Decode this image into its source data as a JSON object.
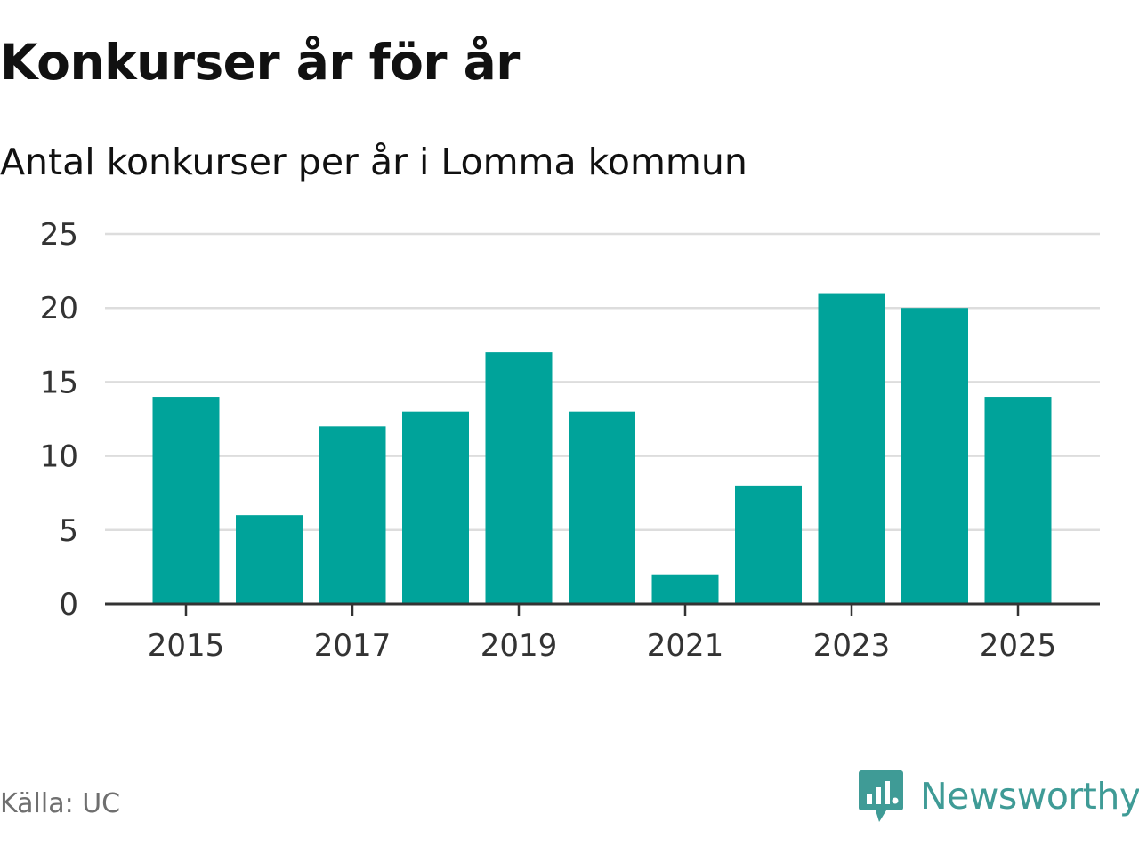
{
  "chart_data": {
    "type": "bar",
    "title": "Konkurser år för år",
    "subtitle": "Antal konkurser per år i Lomma kommun",
    "categories": [
      "2015",
      "2016",
      "2017",
      "2018",
      "2019",
      "2020",
      "2021",
      "2022",
      "2023",
      "2024",
      "2025"
    ],
    "values": [
      14,
      6,
      12,
      13,
      17,
      13,
      2,
      8,
      21,
      20,
      14
    ],
    "xticks": [
      "2015",
      "2017",
      "2019",
      "2021",
      "2023",
      "2025"
    ],
    "yticks": [
      0,
      5,
      10,
      15,
      20,
      25
    ],
    "ylim": [
      0,
      25
    ],
    "xlabel": "",
    "ylabel": "",
    "grid": true,
    "bar_color": "#00a39a"
  },
  "source": "Källa: UC",
  "brand": {
    "name": "Newsworthy",
    "color": "#3f9b96",
    "icon": "bar-chart-speech-bubble-icon"
  }
}
